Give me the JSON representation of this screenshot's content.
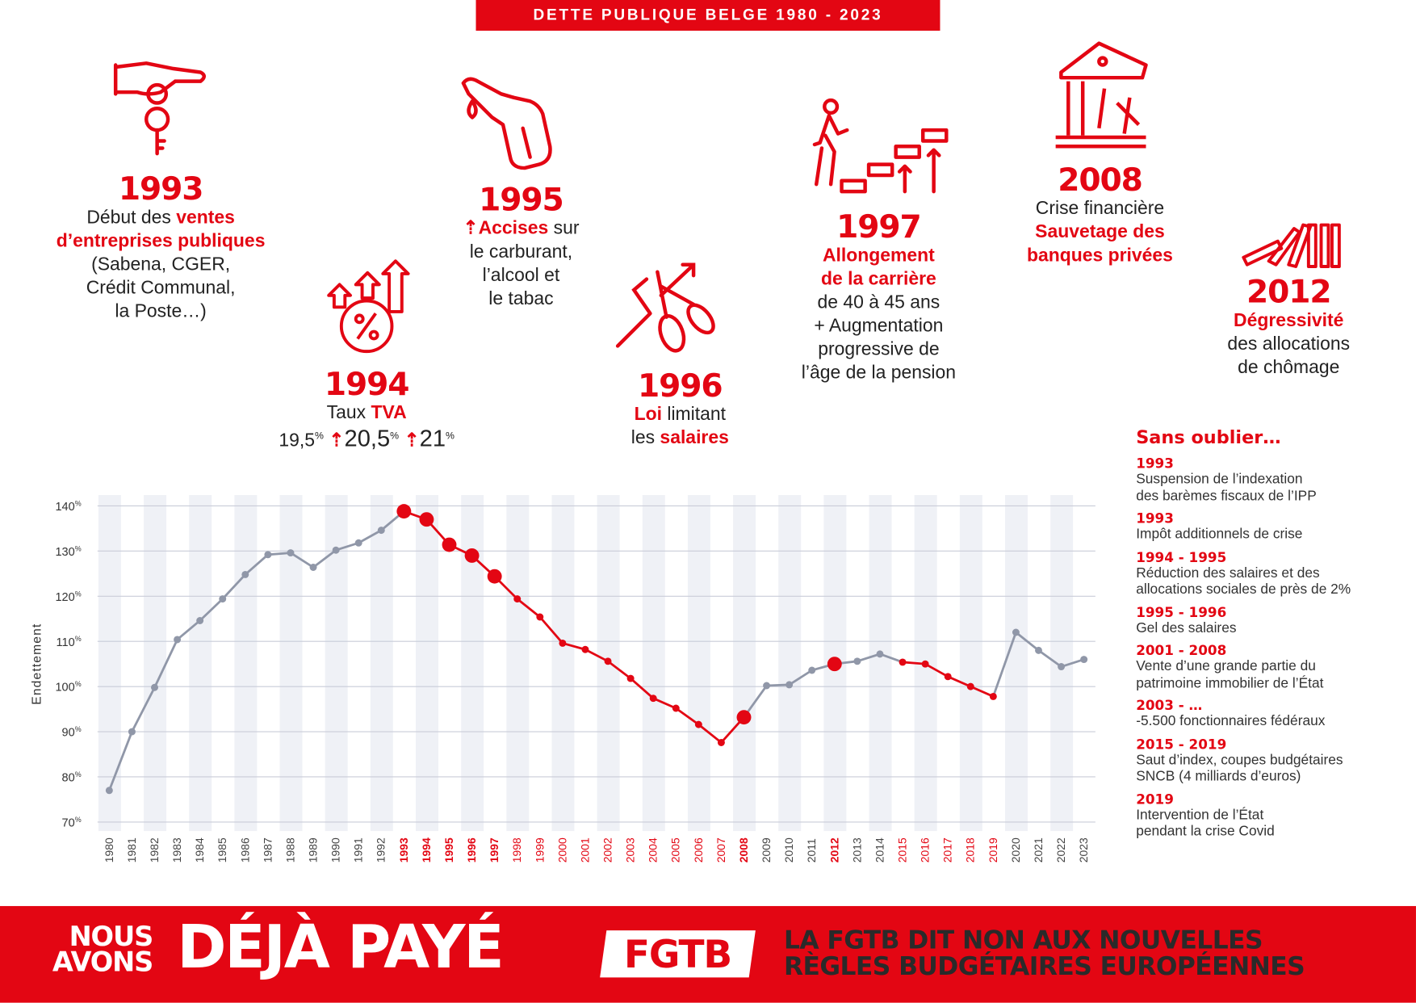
{
  "header": {
    "title": "DETTE PUBLIQUE BELGE 1980 - 2023"
  },
  "events": [
    {
      "id": "1993",
      "year": "1993",
      "icon": "hand-giving-key-icon",
      "lines": [
        [
          {
            "t": "Début des "
          },
          {
            "t": "ventes",
            "hl": true
          }
        ],
        [
          {
            "t": "d’entreprises publiques",
            "hl": true
          }
        ],
        [
          {
            "t": "(Sabena, CGER,"
          }
        ],
        [
          {
            "t": "Crédit Communal,"
          }
        ],
        [
          {
            "t": "la Poste…)"
          }
        ]
      ]
    },
    {
      "id": "1994",
      "year": "1994",
      "icon": "percent-rising-arrows-icon",
      "lines": [
        [
          {
            "t": "Taux "
          },
          {
            "t": "TVA",
            "hl": true
          }
        ]
      ],
      "rates": [
        "19,5",
        "20,5",
        "21"
      ],
      "rate_unit": "%"
    },
    {
      "id": "1995",
      "year": "1995",
      "icon": "fuel-nozzle-icon",
      "lines": [
        [
          {
            "t": "Accisesup",
            "hl": true,
            "arrow": true
          },
          {
            "t": " sur"
          }
        ],
        [
          {
            "t": "le carburant,"
          }
        ],
        [
          {
            "t": "l’alcool et"
          }
        ],
        [
          {
            "t": "le tabac"
          }
        ]
      ]
    },
    {
      "id": "1996",
      "year": "1996",
      "icon": "scissors-cutting-graph-icon",
      "lines": [
        [
          {
            "t": "Loi",
            "hl": true
          },
          {
            "t": " limitant"
          }
        ],
        [
          {
            "t": "les "
          },
          {
            "t": "salaires",
            "hl": true
          }
        ]
      ]
    },
    {
      "id": "1997",
      "year": "1997",
      "icon": "person-climbing-steps-icon",
      "lines": [
        [
          {
            "t": "Allongement",
            "hl": true
          }
        ],
        [
          {
            "t": "de la carrière",
            "hl": true
          }
        ],
        [
          {
            "t": "de 40 à 45 ans"
          }
        ],
        [
          {
            "t": "+ Augmentation"
          }
        ],
        [
          {
            "t": "progressive de"
          }
        ],
        [
          {
            "t": "l’âge de la pension"
          }
        ]
      ]
    },
    {
      "id": "2008",
      "year": "2008",
      "icon": "collapsing-bank-icon",
      "lines": [
        [
          {
            "t": "Crise financière"
          }
        ],
        [
          {
            "t": "Sauvetage des",
            "hl": true
          }
        ],
        [
          {
            "t": "banques privées",
            "hl": true
          }
        ]
      ]
    },
    {
      "id": "2012",
      "year": "2012",
      "icon": "falling-dominoes-icon",
      "lines": [
        [
          {
            "t": "Dégressivité",
            "hl": true
          }
        ],
        [
          {
            "t": "des allocations"
          }
        ],
        [
          {
            "t": "de chômage"
          }
        ]
      ]
    }
  ],
  "sidebar": {
    "title": "Sans oublier…",
    "items": [
      {
        "years": "1993",
        "text": [
          "Suspension de l’indexation",
          "des barèmes fiscaux de l’IPP"
        ]
      },
      {
        "years": "1993",
        "text": [
          "Impôt additionnels de crise"
        ]
      },
      {
        "years": "1994 - 1995",
        "text": [
          "Réduction des salaires et des",
          "allocations sociales de près de 2%"
        ]
      },
      {
        "years": "1995 - 1996",
        "text": [
          "Gel des salaires"
        ]
      },
      {
        "years": "2001 - 2008",
        "text": [
          "Vente d’une grande partie du",
          "patrimoine immobilier de l’État"
        ]
      },
      {
        "years": "2003 - …",
        "text": [
          "-5.500 fonctionnaires fédéraux"
        ]
      },
      {
        "years": "2015 - 2019",
        "text": [
          "Saut d’index, coupes budgétaires",
          "SNCB (4 milliards d’euros)"
        ]
      },
      {
        "years": "2019",
        "text": [
          "Intervention de l’État",
          "pendant la crise Covid"
        ]
      }
    ]
  },
  "chart_data": {
    "type": "line",
    "title": "",
    "xlabel": "",
    "ylabel": "Endettement",
    "ylim": [
      70,
      140
    ],
    "yticks": [
      70,
      80,
      90,
      100,
      110,
      120,
      130,
      140
    ],
    "ytick_suffix": "%",
    "grid": true,
    "x": [
      1980,
      1981,
      1982,
      1983,
      1984,
      1985,
      1986,
      1987,
      1988,
      1989,
      1990,
      1991,
      1992,
      1993,
      1994,
      1995,
      1996,
      1997,
      1998,
      1999,
      2000,
      2001,
      2002,
      2003,
      2004,
      2005,
      2006,
      2007,
      2008,
      2009,
      2010,
      2011,
      2012,
      2013,
      2014,
      2015,
      2016,
      2017,
      2018,
      2019,
      2020,
      2021,
      2022,
      2023
    ],
    "values": [
      77,
      90,
      99.8,
      110.4,
      114.6,
      119.4,
      124.8,
      129.2,
      129.6,
      126.4,
      130.2,
      131.8,
      134.6,
      138.8,
      137,
      131.4,
      129,
      124.4,
      119.4,
      115.4,
      109.6,
      108.2,
      105.6,
      101.8,
      97.4,
      95.2,
      91.6,
      87.6,
      93.2,
      100.2,
      100.4,
      103.6,
      105,
      105.6,
      107.2,
      105.4,
      105,
      102.2,
      100,
      97.8,
      112,
      108,
      104.4,
      106
    ],
    "highlighted_years": [
      1993,
      1994,
      1995,
      1996,
      1997,
      2008,
      2012
    ],
    "highlighted_periods": [
      [
        1993,
        2008
      ],
      [
        2015,
        2019
      ]
    ],
    "colors": {
      "base": "#9097a8",
      "highlight": "#e30613",
      "band": "#eff1f6",
      "grid": "#c9ccd8"
    }
  },
  "footer": {
    "nous": "NOUS",
    "avons": "AVONS",
    "deja_paye": "DÉJÀ PAYÉ",
    "logo": "FGTB",
    "slogan_1": "LA FGTB DIT NON AUX NOUVELLES",
    "slogan_2": "RÈGLES BUDGÉTAIRES EUROPÉENNES"
  }
}
